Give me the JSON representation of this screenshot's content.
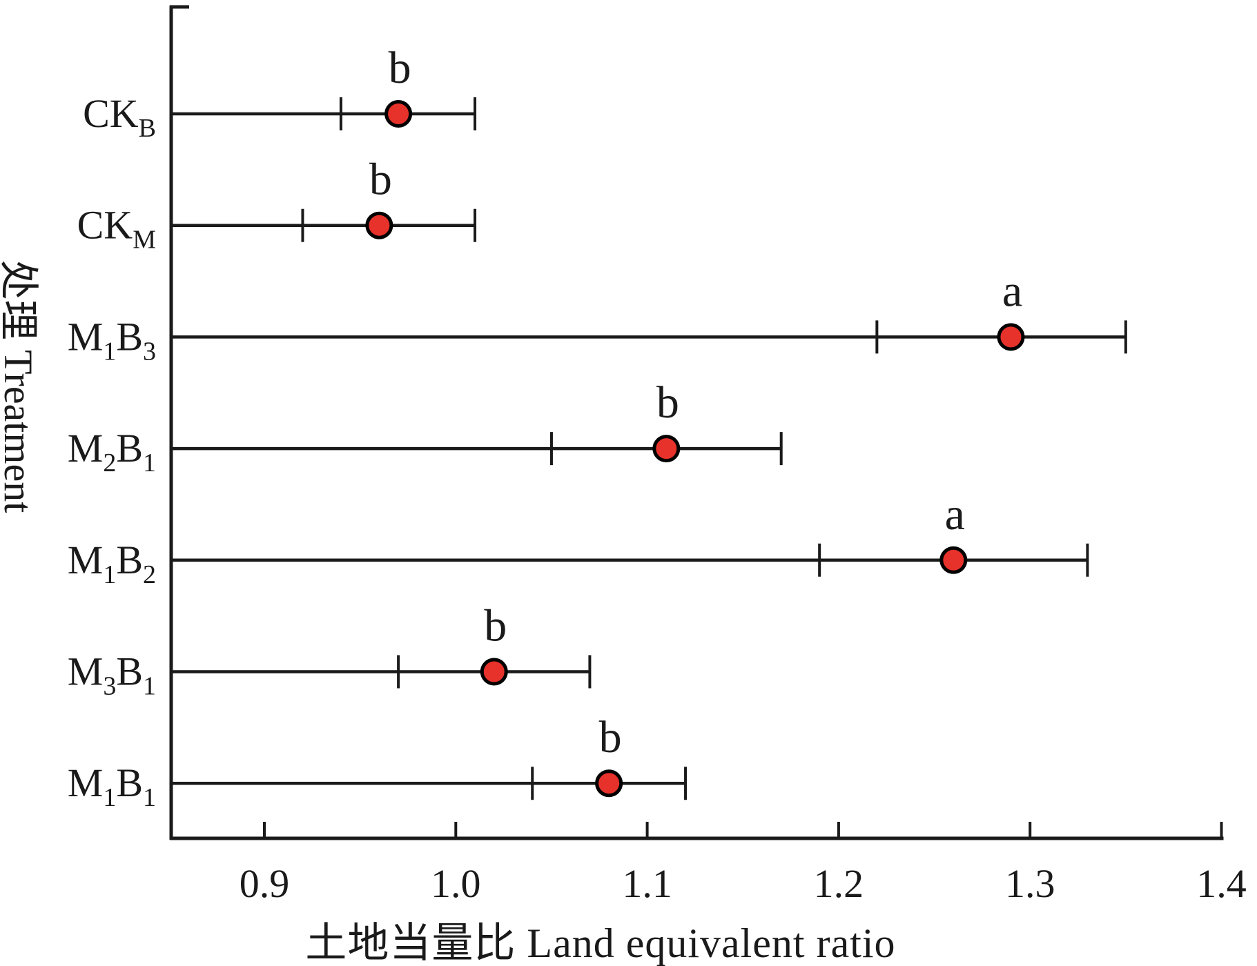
{
  "figure": {
    "background": "#ffffff",
    "ink_color": "#1a1a1a",
    "marker_color": "#e6322a",
    "marker_edge_color": "#000000"
  },
  "chart_data": {
    "type": "scatter",
    "subtype": "horizontal-dot-with-error-bars",
    "title": "",
    "xlabel": "土地当量比 Land equivalent ratio",
    "ylabel": "处理 Treatment",
    "xlim": [
      0.85,
      1.42
    ],
    "xticks": [
      0.9,
      1.0,
      1.1,
      1.2,
      1.3,
      1.4
    ],
    "xtick_labels": [
      "0.9",
      "1.0",
      "1.1",
      "1.2",
      "1.3",
      "1.4"
    ],
    "grid": false,
    "legend": "none",
    "categories_top_to_bottom": [
      "CK_{B}",
      "CK_{M}",
      "M_{1}B_{3}",
      "M_{2}B_{1}",
      "M_{1}B_{2}",
      "M_{3}B_{1}",
      "M_{1}B_{1}"
    ],
    "series": [
      {
        "name": "Land equivalent ratio",
        "points": [
          {
            "category": "CK_{B}",
            "value": 0.97,
            "lower": 0.94,
            "upper": 1.01,
            "sig_letter": "b"
          },
          {
            "category": "CK_{M}",
            "value": 0.96,
            "lower": 0.92,
            "upper": 1.01,
            "sig_letter": "b"
          },
          {
            "category": "M_{1}B_{3}",
            "value": 1.29,
            "lower": 1.22,
            "upper": 1.35,
            "sig_letter": "a"
          },
          {
            "category": "M_{2}B_{1}",
            "value": 1.11,
            "lower": 1.05,
            "upper": 1.17,
            "sig_letter": "b"
          },
          {
            "category": "M_{1}B_{2}",
            "value": 1.26,
            "lower": 1.19,
            "upper": 1.33,
            "sig_letter": "a"
          },
          {
            "category": "M_{3}B_{1}",
            "value": 1.02,
            "lower": 0.97,
            "upper": 1.07,
            "sig_letter": "b"
          },
          {
            "category": "M_{1}B_{1}",
            "value": 1.08,
            "lower": 1.04,
            "upper": 1.12,
            "sig_letter": "b"
          }
        ]
      }
    ]
  }
}
